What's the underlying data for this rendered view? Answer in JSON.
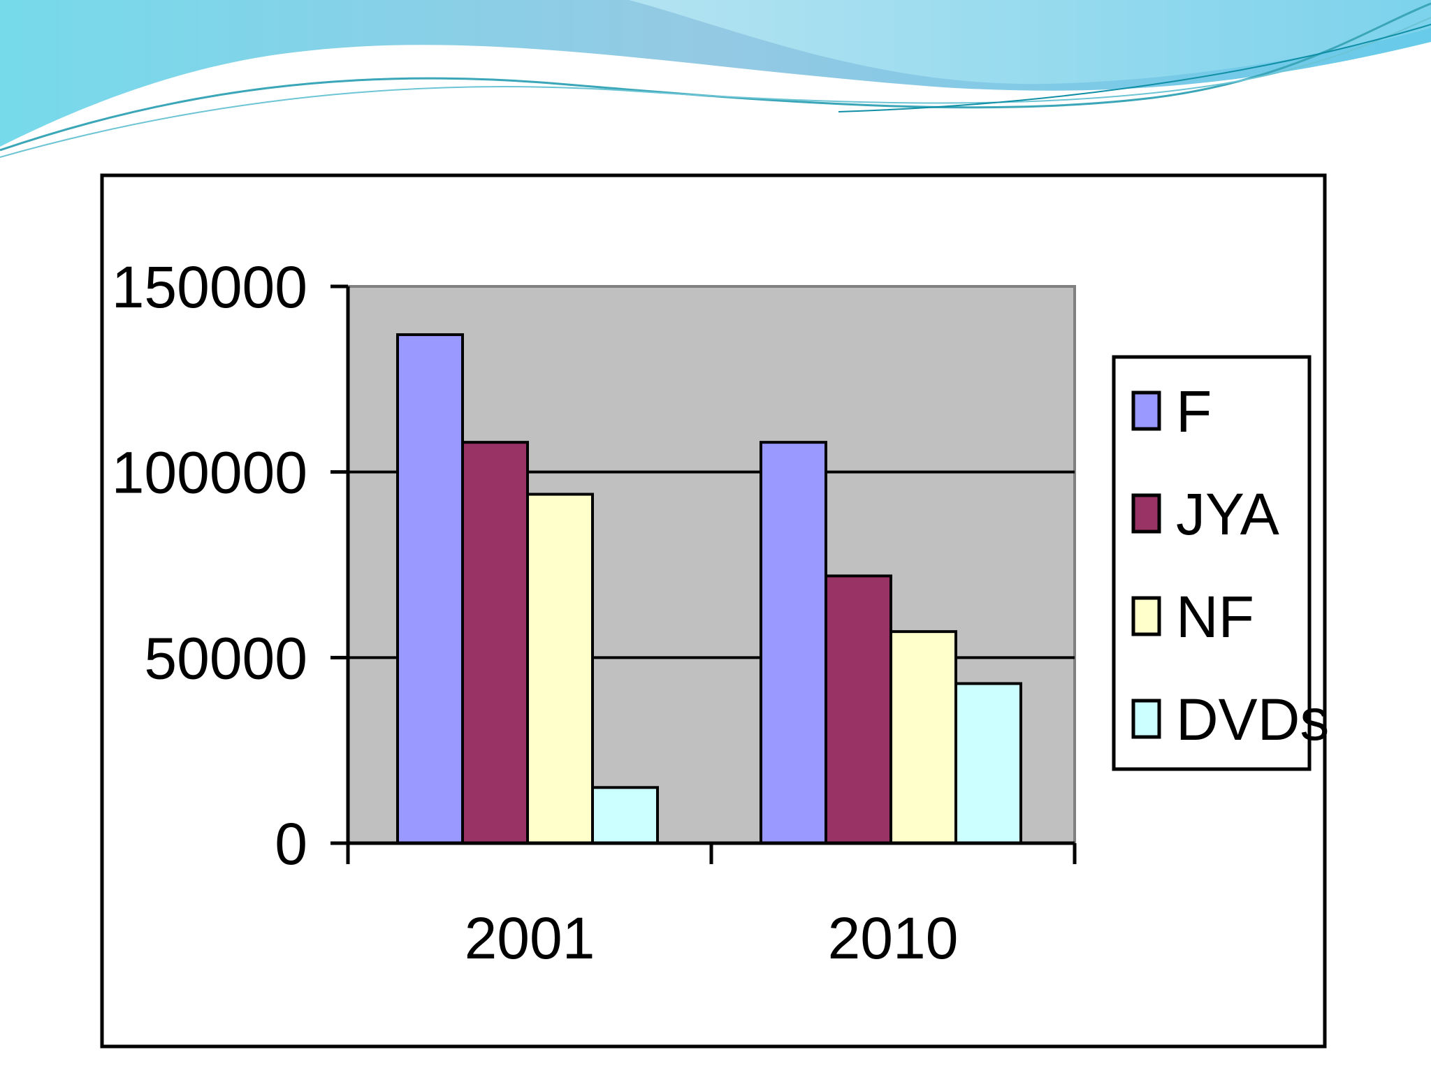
{
  "chart_data": {
    "type": "bar",
    "categories": [
      "2001",
      "2010"
    ],
    "series": [
      {
        "name": "F",
        "values": [
          137000,
          108000
        ],
        "color": "#9999ff"
      },
      {
        "name": "JYA",
        "values": [
          108000,
          72000
        ],
        "color": "#993366"
      },
      {
        "name": "NF",
        "values": [
          94000,
          57000
        ],
        "color": "#ffffcc"
      },
      {
        "name": "DVDs",
        "values": [
          15000,
          43000
        ],
        "color": "#ccffff"
      }
    ],
    "title": "",
    "xlabel": "",
    "ylabel": "",
    "ylim": [
      0,
      150000
    ],
    "yticks": [
      "0",
      "50000",
      "100000",
      "150000"
    ],
    "grid": true,
    "legend_position": "right",
    "plot_background": "#c0c0c0"
  }
}
